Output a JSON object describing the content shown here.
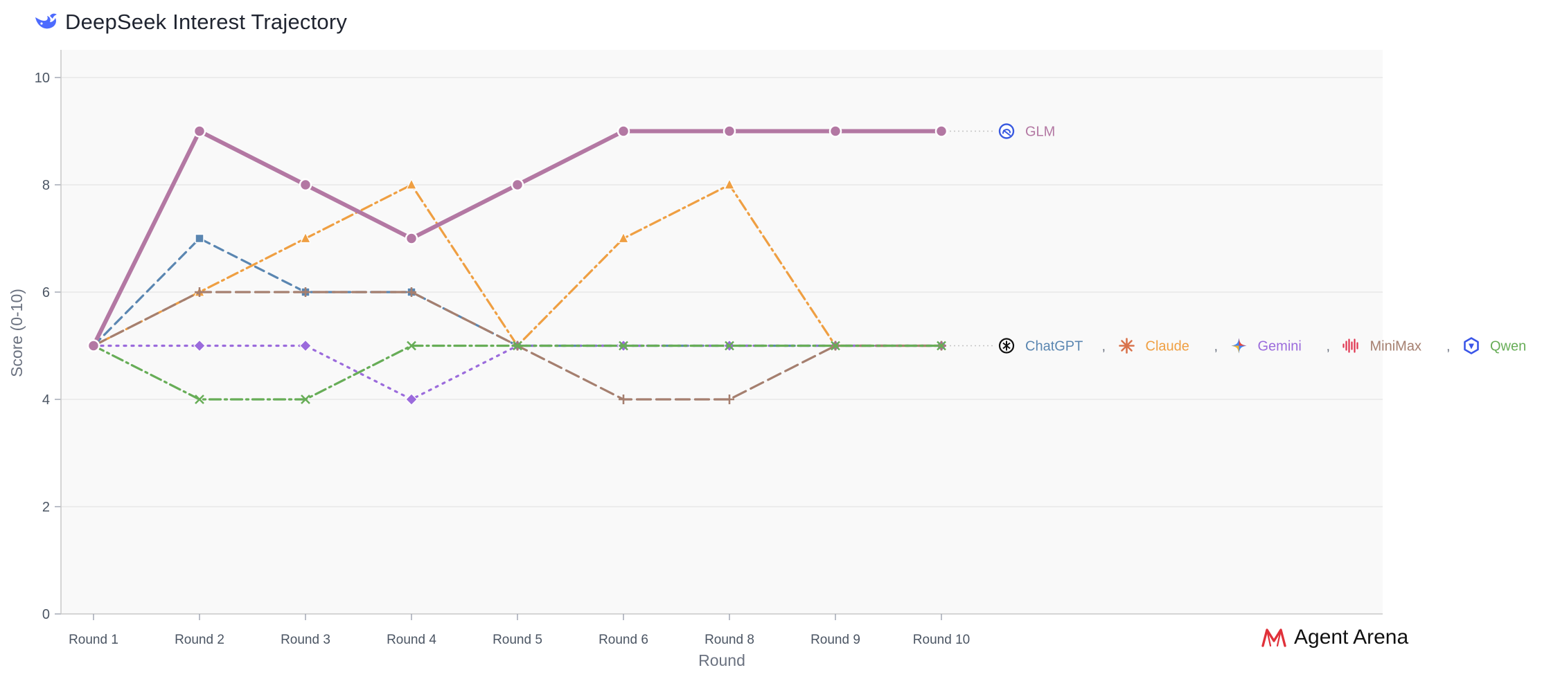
{
  "header": {
    "title": "DeepSeek Interest Trajectory",
    "logo_icon": "deepseek-whale-icon"
  },
  "brand": {
    "label": "Agent Arena",
    "logo_icon": "agent-arena-logo-icon",
    "color": "#e0313a"
  },
  "legend_separator": ",",
  "chart_data": {
    "type": "line",
    "title": "DeepSeek Interest Trajectory",
    "xlabel": "Round",
    "ylabel": "Score (0-10)",
    "ylim": [
      0,
      10
    ],
    "yticks": [
      0,
      2,
      4,
      6,
      8,
      10
    ],
    "grid": true,
    "categories": [
      "Round 1",
      "Round 2",
      "Round 3",
      "Round 4",
      "Round 5",
      "Round 6",
      "Round 8",
      "Round 9",
      "Round 10"
    ],
    "series": [
      {
        "name": "ChatGPT",
        "values": [
          5,
          7,
          6,
          6,
          5,
          5,
          5,
          5,
          5
        ],
        "color": "#5a86b1",
        "dash": "dashed",
        "marker": "square",
        "icon": "chatgpt-icon"
      },
      {
        "name": "Claude",
        "values": [
          5,
          6,
          7,
          8,
          5,
          7,
          8,
          5,
          5
        ],
        "color": "#ef9f42",
        "dash": "dashdot",
        "marker": "triangle",
        "icon": "claude-icon"
      },
      {
        "name": "Gemini",
        "values": [
          5,
          5,
          5,
          4,
          5,
          5,
          5,
          5,
          5
        ],
        "color": "#9b6bdc",
        "dash": "dotted",
        "marker": "diamond",
        "icon": "gemini-icon"
      },
      {
        "name": "MiniMax",
        "values": [
          5,
          6,
          6,
          6,
          5,
          4,
          4,
          5,
          5
        ],
        "color": "#a57f6f",
        "dash": "longdash",
        "marker": "plus",
        "icon": "minimax-icon"
      },
      {
        "name": "Qwen",
        "values": [
          5,
          4,
          4,
          5,
          5,
          5,
          5,
          5,
          5
        ],
        "color": "#67ad57",
        "dash": "dashdot",
        "marker": "x",
        "icon": "qwen-icon"
      },
      {
        "name": "GLM",
        "values": [
          5,
          9,
          8,
          7,
          8,
          9,
          9,
          9,
          9
        ],
        "color": "#b378a3",
        "dash": "solid",
        "marker": "circle",
        "icon": "glm-icon",
        "highlight": true
      }
    ],
    "end_labels": [
      {
        "value": 9,
        "series": [
          "GLM"
        ]
      },
      {
        "value": 5,
        "series": [
          "ChatGPT",
          "Claude",
          "Gemini",
          "MiniMax",
          "Qwen"
        ]
      }
    ]
  }
}
